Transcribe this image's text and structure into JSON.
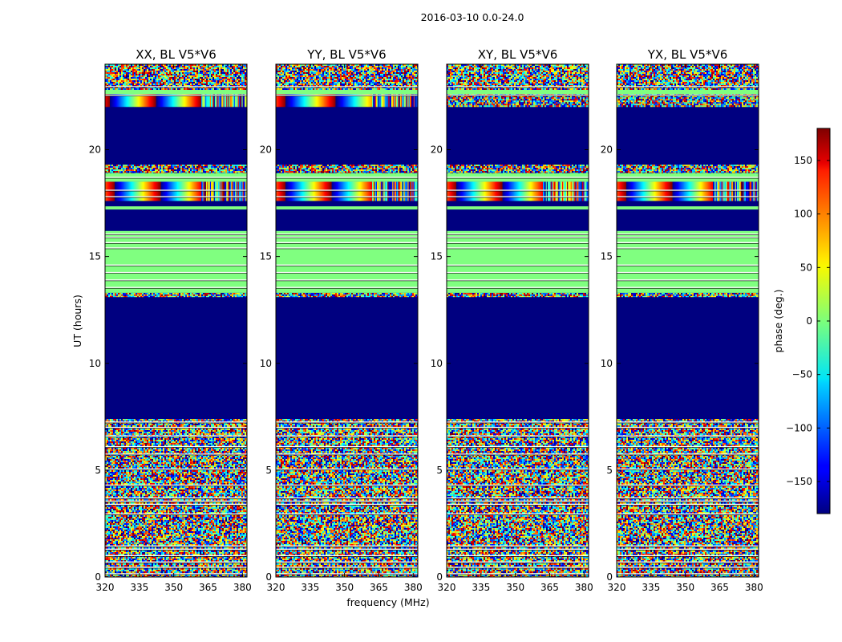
{
  "chart_data": {
    "type": "heatmap",
    "suptitle": "2016-03-10 0.0-24.0",
    "xlabel": "frequency (MHz)",
    "ylabel": "UT (hours)",
    "xlim": [
      320,
      382
    ],
    "ylim": [
      0,
      24
    ],
    "xticks": [
      320,
      335,
      350,
      365,
      380
    ],
    "xtick_labels": [
      "320",
      "335",
      "350",
      "365",
      "380"
    ],
    "yticks": [
      0,
      5,
      10,
      15,
      20
    ],
    "ytick_labels": [
      "0",
      "5",
      "10",
      "15",
      "20"
    ],
    "colormap": "jet",
    "colorbar": {
      "label": "phase (deg.)",
      "range": [
        -180,
        180
      ],
      "ticks": [
        -150,
        -100,
        -50,
        0,
        50,
        100,
        150
      ],
      "tick_labels": [
        "−150",
        "−100",
        "−50",
        "0",
        "50",
        "100",
        "150"
      ]
    },
    "panels": [
      {
        "title": "XX, BL V5*V6",
        "fringe_hi_start": 322,
        "fringe_hi_period": 20,
        "fringe_18_start": 324,
        "fringe_18_period": 20
      },
      {
        "title": "YY, BL V5*V6",
        "fringe_hi_start": 324,
        "fringe_hi_period": 22,
        "fringe_18_start": 324,
        "fringe_18_period": 20
      },
      {
        "title": "XY, BL V5*V6",
        "fringe_hi_start": 0,
        "fringe_hi_period": 0,
        "fringe_18_start": 324,
        "fringe_18_period": 20
      },
      {
        "title": "YX, BL V5*V6",
        "fringe_hi_start": 0,
        "fringe_hi_period": 0,
        "fringe_18_start": 324,
        "fringe_18_period": 20
      }
    ],
    "time_segments": [
      {
        "ut_start": 0.0,
        "ut_end": 7.4,
        "phase": "noise"
      },
      {
        "ut_start": 7.4,
        "ut_end": 13.1,
        "phase": -180
      },
      {
        "ut_start": 13.1,
        "ut_end": 13.3,
        "phase": "noise"
      },
      {
        "ut_start": 13.3,
        "ut_end": 16.2,
        "phase": 0
      },
      {
        "ut_start": 16.2,
        "ut_end": 17.2,
        "phase": -180
      },
      {
        "ut_start": 17.2,
        "ut_end": 17.35,
        "phase": 0
      },
      {
        "ut_start": 17.35,
        "ut_end": 17.6,
        "phase": -180
      },
      {
        "ut_start": 17.6,
        "ut_end": 18.5,
        "phase": "fringe"
      },
      {
        "ut_start": 18.5,
        "ut_end": 18.9,
        "phase": 0
      },
      {
        "ut_start": 18.9,
        "ut_end": 19.3,
        "phase": "noise"
      },
      {
        "ut_start": 19.3,
        "ut_end": 22.0,
        "phase": -180
      },
      {
        "ut_start": 22.0,
        "ut_end": 22.6,
        "phase": "fringe-hi"
      },
      {
        "ut_start": 22.6,
        "ut_end": 22.8,
        "phase": 0
      },
      {
        "ut_start": 22.8,
        "ut_end": 24.0,
        "phase": "noise"
      }
    ],
    "blank_rows_ut": [
      0.15,
      0.45,
      0.7,
      1.0,
      1.3,
      1.45,
      2.95,
      3.4,
      3.55,
      3.7,
      4.3,
      5.05,
      5.75,
      6.1,
      6.6,
      7.0,
      7.25,
      13.55,
      13.9,
      14.25,
      14.6,
      15.4,
      15.65,
      15.9,
      16.05,
      17.8,
      18.1,
      18.7,
      22.55,
      22.95
    ]
  }
}
